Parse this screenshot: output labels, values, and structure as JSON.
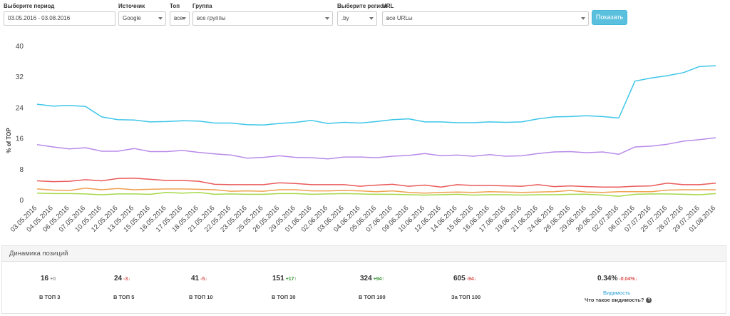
{
  "filters": {
    "period": {
      "label": "Выберите период",
      "value": "03.05.2016 - 03.08.2016"
    },
    "source": {
      "label": "Источник",
      "value": "Google"
    },
    "top": {
      "label": "Топ",
      "value": "все"
    },
    "group": {
      "label": "Группа",
      "value": "все группы"
    },
    "region": {
      "label": "Выберите регион",
      "value": ".by"
    },
    "url": {
      "label": "URL",
      "value": "все URLы"
    },
    "show_button": "Показать"
  },
  "chart_data": {
    "type": "line",
    "ylabel": "% of TOP",
    "xlabel": "",
    "ylim": [
      0,
      40
    ],
    "yticks": [
      0,
      8,
      16,
      24,
      32,
      40
    ],
    "grid": false,
    "categories": [
      "03.05.2016",
      "04.05.2016",
      "06.05.2016",
      "07.05.2016",
      "10.05.2016",
      "12.05.2016",
      "13.05.2016",
      "15.05.2016",
      "16.05.2016",
      "17.05.2016",
      "18.05.2016",
      "21.05.2016",
      "22.05.2016",
      "23.05.2016",
      "25.05.2016",
      "26.05.2016",
      "29.05.2016",
      "01.06.2016",
      "02.06.2016",
      "03.06.2016",
      "04.06.2016",
      "05.06.2016",
      "07.06.2016",
      "09.06.2016",
      "10.06.2016",
      "12.06.2016",
      "14.06.2016",
      "15.06.2016",
      "16.06.2016",
      "17.06.2016",
      "19.06.2016",
      "21.06.2016",
      "24.06.2016",
      "26.06.2016",
      "29.06.2016",
      "30.06.2016",
      "02.07.2016",
      "06.07.2016",
      "07.07.2016",
      "25.07.2016",
      "28.07.2016",
      "29.07.2016",
      "01.08.2016"
    ],
    "series": [
      {
        "color": "#3ec6e8",
        "values": [
          24.8,
          24.3,
          24.5,
          24.2,
          21.5,
          20.8,
          20.7,
          20.2,
          20.3,
          20.5,
          20.4,
          19.9,
          19.9,
          19.5,
          19.4,
          19.8,
          20.1,
          20.6,
          19.8,
          20.1,
          19.9,
          20.3,
          20.8,
          21.0,
          20.2,
          20.2,
          20.0,
          20.0,
          20.2,
          20.1,
          20.2,
          21.0,
          21.5,
          21.6,
          21.8,
          21.6,
          21.2,
          30.8,
          31.6,
          32.2,
          33.0,
          34.6,
          34.8
        ]
      },
      {
        "color": "#b98ae8",
        "values": [
          14.3,
          13.7,
          13.2,
          13.5,
          12.6,
          12.6,
          13.3,
          12.5,
          12.5,
          12.8,
          12.3,
          11.9,
          11.6,
          10.8,
          11.0,
          11.4,
          11.0,
          10.9,
          10.6,
          11.1,
          11.1,
          10.9,
          11.3,
          11.5,
          12.0,
          11.4,
          11.6,
          11.3,
          11.7,
          11.3,
          11.4,
          12.0,
          12.4,
          12.5,
          12.2,
          12.4,
          11.8,
          13.7,
          13.9,
          14.4,
          15.2,
          15.6,
          16.1
        ]
      },
      {
        "color": "#ea5a5a",
        "values": [
          4.9,
          4.7,
          4.8,
          5.2,
          4.9,
          5.5,
          5.6,
          5.3,
          5.0,
          5.0,
          4.8,
          4.0,
          3.9,
          3.9,
          3.9,
          4.4,
          4.2,
          3.9,
          3.9,
          3.9,
          3.5,
          3.8,
          4.0,
          3.5,
          3.8,
          3.3,
          3.9,
          3.7,
          3.7,
          3.6,
          3.5,
          3.9,
          3.4,
          3.6,
          3.4,
          3.3,
          3.3,
          3.5,
          3.6,
          4.3,
          3.9,
          3.9,
          4.3
        ]
      },
      {
        "color": "#f0a050",
        "values": [
          2.8,
          2.5,
          2.4,
          3.0,
          2.6,
          2.9,
          2.6,
          2.7,
          2.8,
          2.8,
          2.7,
          2.6,
          2.2,
          2.3,
          2.2,
          2.6,
          2.6,
          2.3,
          2.3,
          2.4,
          2.3,
          2.1,
          2.3,
          1.9,
          1.7,
          1.9,
          2.0,
          1.9,
          2.1,
          2.0,
          1.9,
          2.0,
          2.1,
          2.4,
          2.0,
          1.9,
          2.1,
          2.1,
          2.1,
          2.5,
          2.6,
          2.6,
          2.6
        ]
      },
      {
        "color": "#a6d84a",
        "values": [
          1.7,
          1.6,
          1.6,
          1.5,
          1.3,
          1.5,
          1.5,
          1.4,
          1.9,
          1.7,
          1.9,
          1.4,
          1.5,
          1.4,
          1.4,
          1.6,
          1.6,
          1.4,
          1.5,
          1.6,
          1.5,
          1.4,
          1.4,
          1.3,
          1.2,
          1.3,
          1.4,
          1.2,
          1.3,
          1.3,
          1.2,
          1.3,
          1.3,
          1.4,
          1.4,
          1.2,
          0.9,
          1.4,
          1.5,
          1.5,
          1.4,
          1.3,
          1.6
        ]
      }
    ]
  },
  "stats": {
    "title": "Динамика позиций",
    "items": [
      {
        "value": "16",
        "delta": "+0",
        "trend": "neutral",
        "label": "В ТОП 3"
      },
      {
        "value": "24",
        "delta": "-3↓",
        "trend": "neg",
        "label": "В ТОП 5"
      },
      {
        "value": "41",
        "delta": "-5↓",
        "trend": "neg",
        "label": "В ТОП 10"
      },
      {
        "value": "151",
        "delta": "+17↑",
        "trend": "pos",
        "label": "В ТОП 30"
      },
      {
        "value": "324",
        "delta": "+94↑",
        "trend": "pos",
        "label": "В ТОП 100"
      },
      {
        "value": "605",
        "delta": "-94↓",
        "trend": "neg",
        "label": "За ТОП 100"
      }
    ],
    "visibility": {
      "value": "0.34%",
      "delta": "-0.04%↓",
      "link": "Видимость",
      "question": "Что такое видимость?",
      "help_icon": "?"
    }
  }
}
